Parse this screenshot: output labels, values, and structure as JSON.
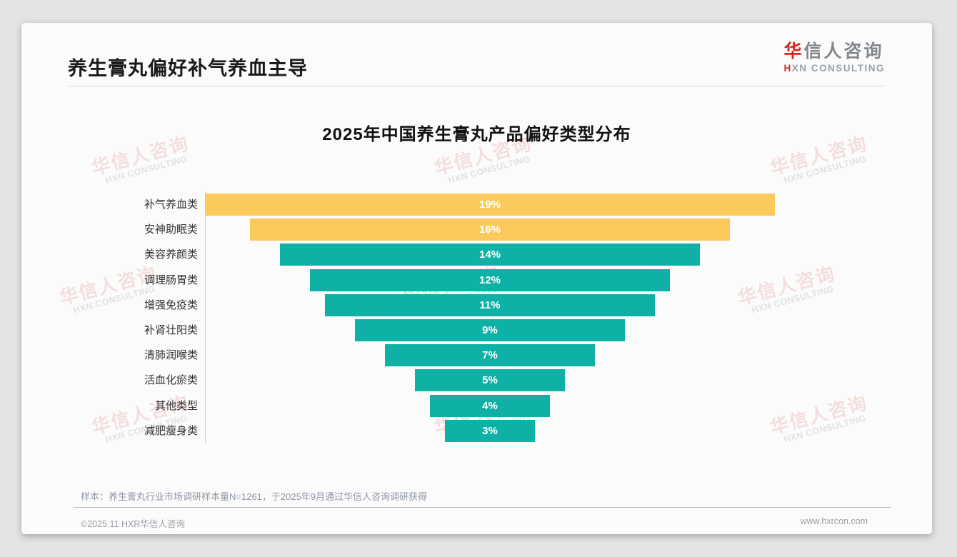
{
  "header": {
    "title": "养生膏丸偏好补气养血主导",
    "logo_cn_accent": "华",
    "logo_cn_rest": "信人咨询",
    "logo_en_accent": "H",
    "logo_en_rest": "XN CONSULTING"
  },
  "chart_data": {
    "type": "bar",
    "subtype": "horizontal-centered-funnel",
    "title": "2025年中国养生膏丸产品偏好类型分布",
    "categories": [
      "补气养血类",
      "安神助眠类",
      "美容养颜类",
      "调理肠胃类",
      "增强免疫类",
      "补肾壮阳类",
      "清肺润喉类",
      "活血化瘀类",
      "其他类型",
      "减肥瘦身类"
    ],
    "values": [
      19,
      16,
      14,
      12,
      11,
      9,
      7,
      5,
      4,
      3
    ],
    "value_labels": [
      "19%",
      "16%",
      "14%",
      "12%",
      "11%",
      "9%",
      "7%",
      "5%",
      "4%",
      "3%"
    ],
    "unit": "%",
    "xlim": [
      0,
      19
    ],
    "highlight_indices": [
      0,
      1
    ],
    "highlight_color": "#FBC95C",
    "base_color": "#0FB0A6",
    "value_label_color": "#ffffff",
    "legend": "none",
    "grid": "off"
  },
  "footnote": "样本：养生膏丸行业市场调研样本量N=1261，于2025年9月通过华信人咨询调研获得",
  "footer": {
    "copyright": "©2025.11 HXR华信人咨询",
    "website": "www.hxrcon.com"
  },
  "watermark": {
    "cn": "华信人咨询",
    "en": "HXN CONSULTING"
  }
}
